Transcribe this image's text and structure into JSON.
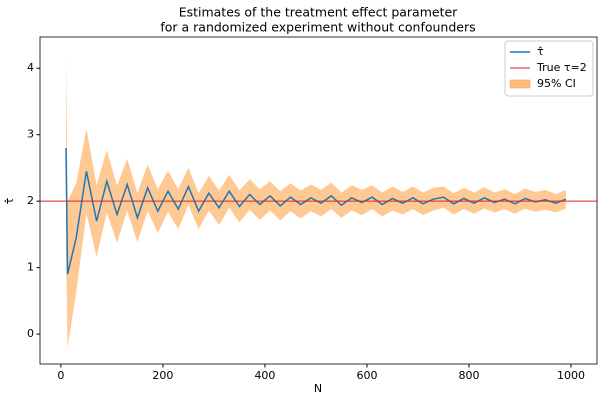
{
  "chart_data": {
    "type": "line",
    "title": [
      "Estimates of the treatment effect parameter",
      "for a randomized experiment without confounders"
    ],
    "xlabel": "N",
    "ylabel": "τ̂",
    "x": [
      10,
      13,
      30,
      50,
      70,
      90,
      110,
      130,
      150,
      170,
      190,
      210,
      230,
      250,
      270,
      290,
      310,
      330,
      350,
      370,
      390,
      410,
      430,
      450,
      470,
      490,
      510,
      530,
      550,
      570,
      590,
      610,
      630,
      650,
      670,
      690,
      710,
      730,
      750,
      770,
      790,
      810,
      830,
      850,
      870,
      890,
      910,
      930,
      950,
      970,
      990
    ],
    "series": [
      {
        "name": "τ̂",
        "color": "#1f77b4",
        "values": [
          2.8,
          0.9,
          1.45,
          2.45,
          1.7,
          2.3,
          1.8,
          2.25,
          1.75,
          2.2,
          1.85,
          2.15,
          1.88,
          2.22,
          1.85,
          2.12,
          1.9,
          2.15,
          1.92,
          2.1,
          1.95,
          2.08,
          1.93,
          2.06,
          1.95,
          2.05,
          1.97,
          2.08,
          1.94,
          2.05,
          1.98,
          2.06,
          1.95,
          2.04,
          1.97,
          2.05,
          1.96,
          2.03,
          2.06,
          1.96,
          2.04,
          1.97,
          2.05,
          1.98,
          2.03,
          1.96,
          2.04,
          1.99,
          2.02,
          1.97,
          2.03
        ]
      }
    ],
    "band": {
      "name": "95% CI",
      "color": "#ffbb78",
      "lower": [
        1.38,
        -0.2,
        0.63,
        1.81,
        1.16,
        1.83,
        1.37,
        1.86,
        1.38,
        1.85,
        1.52,
        1.84,
        1.58,
        1.94,
        1.58,
        1.86,
        1.64,
        1.9,
        1.68,
        1.87,
        1.72,
        1.86,
        1.71,
        1.85,
        1.74,
        1.85,
        1.77,
        1.88,
        1.75,
        1.86,
        1.79,
        1.88,
        1.77,
        1.86,
        1.8,
        1.88,
        1.79,
        1.86,
        1.9,
        1.8,
        1.88,
        1.81,
        1.89,
        1.83,
        1.88,
        1.81,
        1.89,
        1.84,
        1.87,
        1.83,
        1.89
      ],
      "upper": [
        4.22,
        2.0,
        2.27,
        3.09,
        2.24,
        2.77,
        2.23,
        2.64,
        2.12,
        2.55,
        2.18,
        2.46,
        2.18,
        2.5,
        2.12,
        2.38,
        2.16,
        2.4,
        2.16,
        2.33,
        2.18,
        2.3,
        2.15,
        2.27,
        2.16,
        2.25,
        2.17,
        2.28,
        2.13,
        2.24,
        2.17,
        2.24,
        2.13,
        2.22,
        2.14,
        2.22,
        2.13,
        2.2,
        2.22,
        2.12,
        2.2,
        2.13,
        2.21,
        2.13,
        2.18,
        2.11,
        2.19,
        2.14,
        2.17,
        2.11,
        2.17
      ]
    },
    "hline": {
      "name": "True τ=2",
      "value": 2,
      "color": "#d62728"
    },
    "xlim": [
      -41,
      1051
    ],
    "ylim": [
      -0.45,
      4.47
    ],
    "xticks": [
      0,
      200,
      400,
      600,
      800,
      1000
    ],
    "yticks": [
      0,
      1,
      2,
      3,
      4
    ],
    "legend": "upper right"
  }
}
